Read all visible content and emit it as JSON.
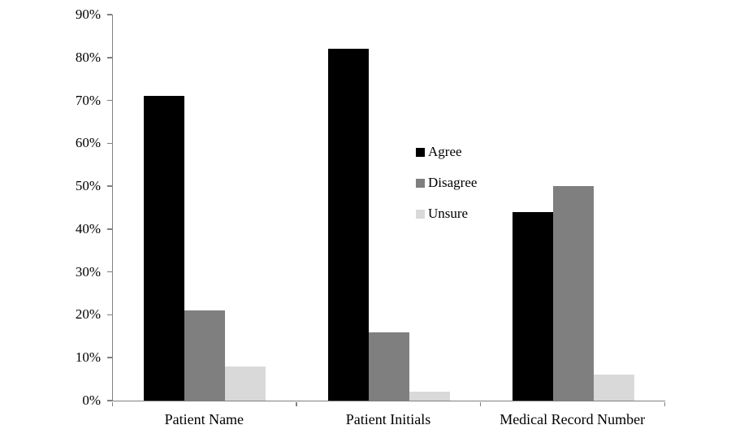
{
  "chart_data": {
    "type": "bar",
    "title": "",
    "xlabel": "",
    "ylabel": "",
    "categories": [
      "Patient Name",
      "Patient Initials",
      "Medical Record Number"
    ],
    "series": [
      {
        "name": "Agree",
        "color": "#000000",
        "values": [
          71,
          82,
          44
        ]
      },
      {
        "name": "Disagree",
        "color": "#7f7f7f",
        "values": [
          21,
          16,
          50
        ]
      },
      {
        "name": "Unsure",
        "color": "#d9d9d9",
        "values": [
          8,
          2,
          6
        ]
      }
    ],
    "value_unit": "%",
    "ylim": [
      0,
      90
    ],
    "ytick_step": 10,
    "ytick_labels": [
      "0%",
      "10%",
      "20%",
      "30%",
      "40%",
      "50%",
      "60%",
      "70%",
      "80%",
      "90%"
    ],
    "grid": false,
    "legend_position": "center-right-inside",
    "axis_color": "#808080",
    "background_color": "#ffffff"
  }
}
